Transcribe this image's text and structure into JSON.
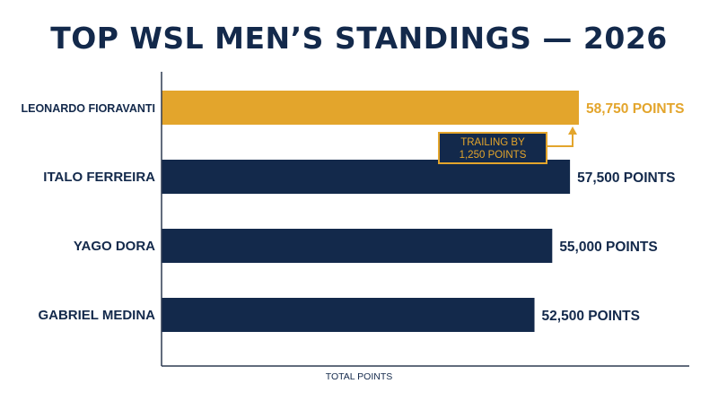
{
  "chart_data": {
    "type": "bar",
    "orientation": "horizontal",
    "title": "TOP WSL MEN’S STANDINGS — 2026",
    "xlabel": "TOTAL POINTS",
    "ylabel": "",
    "categories": [
      "LEONARDO FIORAVANTI",
      "ITALO FERREIRA",
      "YAGO DORA",
      "GABRIEL MEDINA"
    ],
    "values": [
      58750,
      57500,
      55000,
      52500
    ],
    "data_labels": [
      "58,750 POINTS",
      "57,500 POINTS",
      "55,000 POINTS",
      "52,500 POINTS"
    ],
    "xlim": [
      0,
      58750
    ],
    "grid": false,
    "legend": "none",
    "highlight_index": 0,
    "colors": {
      "highlight": "#e3a52c",
      "bar": "#13294b",
      "text": "#13294b",
      "axis": "#2f3b52"
    },
    "annotation": {
      "lines": [
        "TRAILING BY",
        "1,250 POINTS"
      ],
      "target_category": "LEONARDO FIORAVANTI",
      "box_fill": "#13294b",
      "border_color": "#e3a52c",
      "text_color": "#e3a52c"
    }
  }
}
